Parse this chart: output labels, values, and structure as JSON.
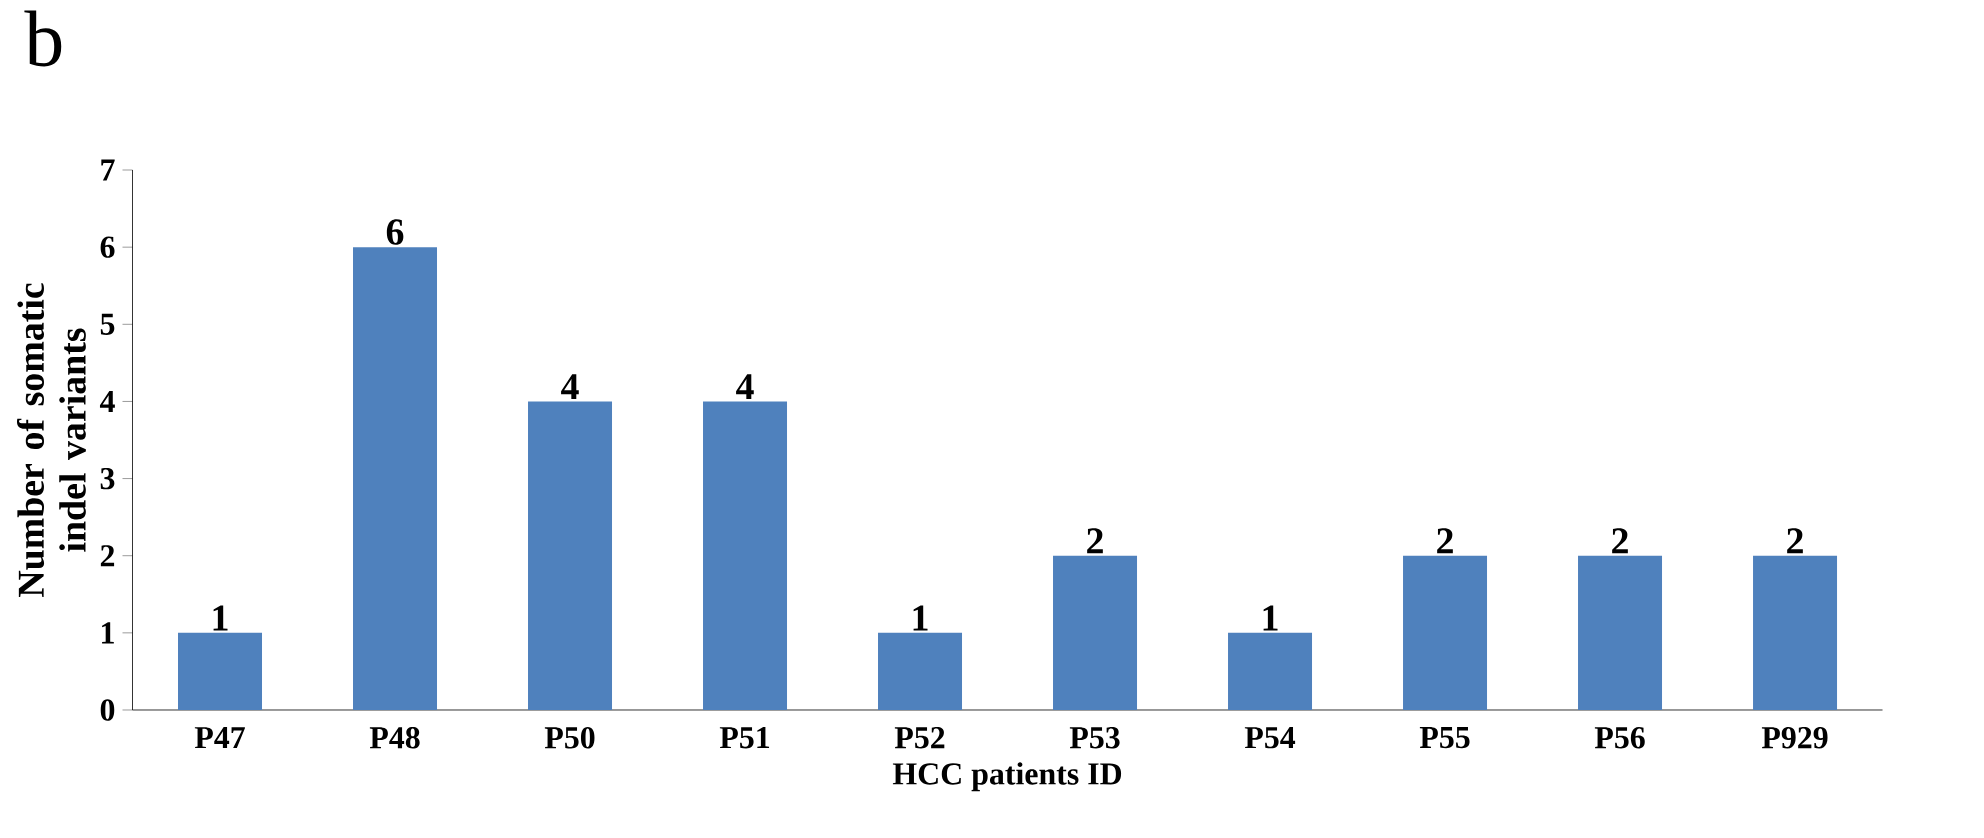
{
  "chart_data": {
    "type": "bar",
    "xlabel": "HCC patients  ID",
    "ylabel": "Number of somatic indel variants",
    "annotations": [
      "b"
    ],
    "categories": [
      "P47",
      "P48",
      "P50",
      "P51",
      "P52",
      "P53",
      "P54",
      "P55",
      "P56",
      "P929"
    ],
    "values": [
      1,
      6,
      4,
      4,
      1,
      2,
      1,
      2,
      2,
      2
    ],
    "color": "#4f81bd",
    "ylim": [
      0,
      7
    ],
    "yticks": [
      0,
      1,
      2,
      3,
      4,
      5,
      6,
      7
    ],
    "data_labels": true,
    "grid": false
  }
}
